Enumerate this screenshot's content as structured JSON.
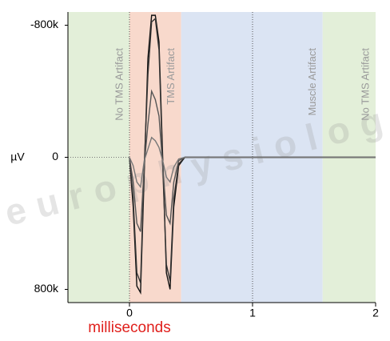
{
  "chart_data": {
    "type": "line",
    "watermark": "europhysiolog",
    "x_label": "milliseconds",
    "y_label": "µV",
    "x": [
      0,
      0.03,
      0.06,
      0.09,
      0.12,
      0.15,
      0.18,
      0.21,
      0.24,
      0.27,
      0.3,
      0.33,
      0.36,
      0.4,
      0.45,
      0.6,
      1,
      2
    ],
    "series": [
      {
        "color": "#111111",
        "values": [
          0,
          300000,
          780000,
          820000,
          100000,
          -600000,
          -860000,
          -860000,
          -700000,
          0,
          700000,
          800000,
          300000,
          50000,
          0,
          0,
          0,
          0
        ]
      },
      {
        "color": "#333333",
        "values": [
          0,
          250000,
          700000,
          760000,
          50000,
          -500000,
          -820000,
          -840000,
          -650000,
          50000,
          650000,
          750000,
          250000,
          40000,
          0,
          0,
          0,
          0
        ]
      },
      {
        "color": "#555555",
        "values": [
          0,
          150000,
          400000,
          450000,
          50000,
          -200000,
          -400000,
          -350000,
          -250000,
          50000,
          350000,
          400000,
          150000,
          20000,
          0,
          0,
          0,
          0
        ]
      },
      {
        "color": "#777777",
        "values": [
          0,
          50000,
          150000,
          180000,
          20000,
          -50000,
          -120000,
          -100000,
          -60000,
          20000,
          120000,
          150000,
          60000,
          10000,
          0,
          0,
          0,
          0
        ]
      }
    ],
    "regions": [
      {
        "label": "No TMS Artifact",
        "start": -0.5,
        "end": 0,
        "color": "#e3efd9"
      },
      {
        "label": "TMS Artifact",
        "start": 0,
        "end": 0.42,
        "color": "#f8d9cc"
      },
      {
        "label": "Muscle Artifact",
        "start": 0.42,
        "end": 1.57,
        "color": "#dbe4f3"
      },
      {
        "label": "No TMS Artifact",
        "start": 1.57,
        "end": 2,
        "color": "#e3efd9"
      }
    ],
    "xlim": [
      -0.5,
      2
    ],
    "xticks": [
      0,
      1,
      2
    ],
    "ylim": [
      -880000,
      880000
    ],
    "invert_y": true,
    "yticks": [
      {
        "value": -800000,
        "label": "-800k"
      },
      0,
      {
        "value": 800000,
        "label": "800k"
      }
    ]
  }
}
